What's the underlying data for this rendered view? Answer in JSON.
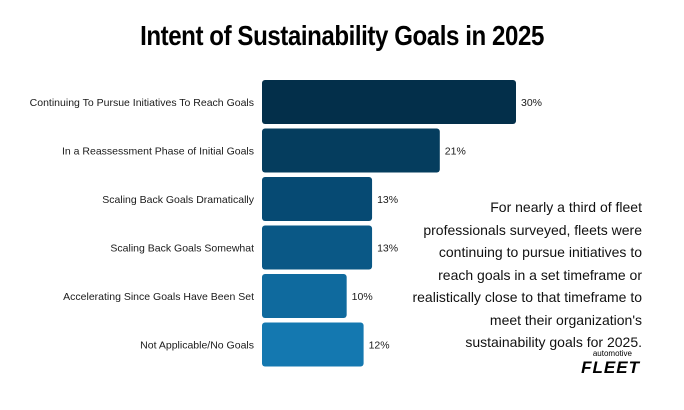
{
  "chart_data": {
    "type": "bar",
    "orientation": "horizontal",
    "title": "Intent of Sustainability Goals in 2025",
    "categories": [
      "Continuing To Pursue Initiatives To Reach Goals",
      "In a Reassessment Phase of Initial Goals",
      "Scaling Back Goals Dramatically",
      "Scaling Back Goals Somewhat",
      "Accelerating Since Goals Have Been Set",
      "Not Applicable/No Goals"
    ],
    "values": [
      30,
      21,
      13,
      13,
      10,
      12
    ],
    "value_labels": [
      "30%",
      "21%",
      "13%",
      "13%",
      "10%",
      "12%"
    ],
    "value_suffix": "%",
    "xlim": [
      0,
      30
    ],
    "grid": false,
    "legend": "none",
    "bar_colors": [
      "#032f4a",
      "#053d5e",
      "#064a73",
      "#0a5886",
      "#0f6a9e",
      "#1478b0"
    ]
  },
  "annotation": {
    "lines": [
      "For nearly a third of fleet",
      "professionals surveyed, fleets were",
      "continuing to pursue initiatives to",
      "reach goals in a set timeframe or",
      "realistically close to that timeframe to",
      "meet their organization's",
      "sustainability goals for 2025."
    ]
  },
  "brand": {
    "small": "automotive",
    "big": "FLEET"
  }
}
